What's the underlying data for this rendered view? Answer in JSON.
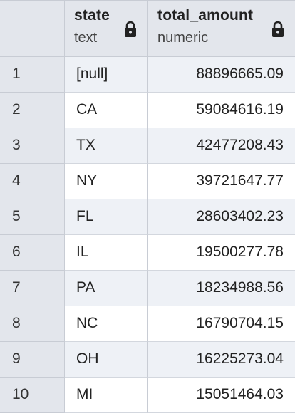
{
  "columns": {
    "state": {
      "name": "state",
      "type": "text",
      "icon": "lock-icon"
    },
    "total_amount": {
      "name": "total_amount",
      "type": "numeric",
      "icon": "lock-icon"
    }
  },
  "rows": [
    {
      "num": "1",
      "state": "[null]",
      "total_amount": "88896665.09"
    },
    {
      "num": "2",
      "state": "CA",
      "total_amount": "59084616.19"
    },
    {
      "num": "3",
      "state": "TX",
      "total_amount": "42477208.43"
    },
    {
      "num": "4",
      "state": "NY",
      "total_amount": "39721647.77"
    },
    {
      "num": "5",
      "state": "FL",
      "total_amount": "28603402.23"
    },
    {
      "num": "6",
      "state": "IL",
      "total_amount": "19500277.78"
    },
    {
      "num": "7",
      "state": "PA",
      "total_amount": "18234988.56"
    },
    {
      "num": "8",
      "state": "NC",
      "total_amount": "16790704.15"
    },
    {
      "num": "9",
      "state": "OH",
      "total_amount": "16225273.04"
    },
    {
      "num": "10",
      "state": "MI",
      "total_amount": "15051464.03"
    }
  ]
}
